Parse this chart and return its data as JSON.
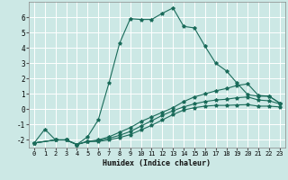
{
  "xlabel": "Humidex (Indice chaleur)",
  "bg_color": "#cce8e5",
  "grid_color": "#ffffff",
  "line_color": "#1a6b5a",
  "xlim": [
    -0.5,
    23.5
  ],
  "ylim": [
    -2.5,
    7.0
  ],
  "yticks": [
    -2,
    -1,
    0,
    1,
    2,
    3,
    4,
    5,
    6
  ],
  "xticks": [
    0,
    1,
    2,
    3,
    4,
    5,
    6,
    7,
    8,
    9,
    10,
    11,
    12,
    13,
    14,
    15,
    16,
    17,
    18,
    19,
    20,
    21,
    22,
    23
  ],
  "line1_x": [
    0,
    1,
    2,
    3,
    4,
    5,
    6,
    7,
    8,
    9,
    10,
    11,
    12,
    13,
    14,
    15,
    16,
    17,
    18,
    19,
    20,
    21,
    22,
    23
  ],
  "line1_y": [
    -2.2,
    -1.3,
    -2.0,
    -2.0,
    -2.3,
    -1.8,
    -0.7,
    1.7,
    4.3,
    5.9,
    5.85,
    5.85,
    6.25,
    6.6,
    5.4,
    5.3,
    4.1,
    3.0,
    2.5,
    1.7,
    0.95,
    0.85,
    0.85,
    0.4
  ],
  "line2_x": [
    0,
    2,
    3,
    4,
    5,
    6,
    7,
    8,
    9,
    10,
    11,
    12,
    13,
    14,
    15,
    16,
    17,
    18,
    19,
    20,
    21,
    22,
    23
  ],
  "line2_y": [
    -2.2,
    -2.0,
    -2.0,
    -2.3,
    -2.1,
    -2.0,
    -1.8,
    -1.5,
    -1.2,
    -0.8,
    -0.5,
    -0.2,
    0.1,
    0.5,
    0.8,
    1.0,
    1.2,
    1.35,
    1.55,
    1.65,
    0.9,
    0.85,
    0.4
  ],
  "line3_x": [
    0,
    2,
    3,
    4,
    5,
    6,
    7,
    8,
    9,
    10,
    11,
    12,
    13,
    14,
    15,
    16,
    17,
    18,
    19,
    20,
    21,
    22,
    23
  ],
  "line3_y": [
    -2.2,
    -2.0,
    -2.0,
    -2.3,
    -2.1,
    -2.05,
    -1.9,
    -1.7,
    -1.45,
    -1.1,
    -0.75,
    -0.4,
    -0.1,
    0.15,
    0.35,
    0.5,
    0.6,
    0.65,
    0.75,
    0.8,
    0.6,
    0.55,
    0.35
  ],
  "line4_x": [
    0,
    2,
    3,
    4,
    5,
    6,
    7,
    8,
    9,
    10,
    11,
    12,
    13,
    14,
    15,
    16,
    17,
    18,
    19,
    20,
    21,
    22,
    23
  ],
  "line4_y": [
    -2.2,
    -2.0,
    -2.0,
    -2.3,
    -2.1,
    -2.1,
    -2.0,
    -1.85,
    -1.65,
    -1.35,
    -1.05,
    -0.7,
    -0.35,
    -0.05,
    0.1,
    0.2,
    0.25,
    0.25,
    0.28,
    0.3,
    0.2,
    0.2,
    0.15
  ]
}
